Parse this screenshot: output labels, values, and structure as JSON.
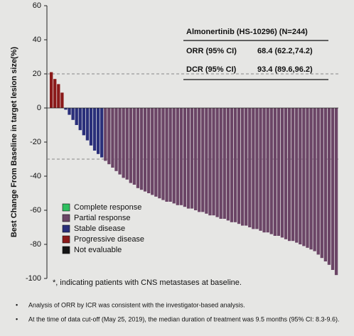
{
  "chart_data": {
    "type": "waterfall",
    "y_label": "Best Change From Baseline in target lesion size(%)",
    "ylim": [
      -100,
      60
    ],
    "yticks": [
      -100,
      -80,
      -60,
      -40,
      -20,
      0,
      20,
      40,
      60
    ],
    "reference_lines": [
      20,
      -30
    ],
    "legend": [
      {
        "name": "Complete response",
        "color": "#2fbf5f"
      },
      {
        "name": "Partial response",
        "color": "#6b4566"
      },
      {
        "name": "Stable disease",
        "color": "#2a2f7a"
      },
      {
        "name": "Progressive disease",
        "color": "#8b1a1a"
      },
      {
        "name": "Not evaluable",
        "color": "#151515"
      }
    ],
    "values": [
      21,
      17,
      14,
      9,
      -1,
      -4,
      -7,
      -10,
      -13,
      -16,
      -19,
      -22,
      -25,
      -27,
      -29,
      -31,
      -33,
      -35,
      -37,
      -39,
      -41,
      -42,
      -44,
      -45,
      -47,
      -48,
      -49,
      -50,
      -51,
      -52,
      -53,
      -54,
      -55,
      -55,
      -56,
      -57,
      -57,
      -58,
      -59,
      -59,
      -60,
      -61,
      -61,
      -62,
      -63,
      -63,
      -64,
      -65,
      -65,
      -66,
      -67,
      -67,
      -68,
      -69,
      -69,
      -70,
      -71,
      -71,
      -72,
      -73,
      -73,
      -74,
      -75,
      -75,
      -76,
      -77,
      -78,
      -78,
      -79,
      -80,
      -81,
      -82,
      -83,
      -84,
      -86,
      -88,
      -90,
      -92,
      -95,
      -98
    ],
    "status": [
      3,
      3,
      3,
      3,
      2,
      2,
      2,
      2,
      2,
      2,
      2,
      2,
      2,
      2,
      2,
      1,
      1,
      1,
      1,
      1,
      1,
      1,
      1,
      1,
      1,
      1,
      1,
      1,
      1,
      1,
      1,
      1,
      1,
      1,
      1,
      1,
      1,
      1,
      1,
      1,
      1,
      1,
      1,
      1,
      1,
      1,
      1,
      1,
      1,
      1,
      1,
      1,
      1,
      1,
      1,
      1,
      1,
      1,
      1,
      1,
      1,
      1,
      1,
      1,
      1,
      1,
      1,
      1,
      1,
      1,
      1,
      1,
      1,
      1,
      1,
      1,
      1,
      1,
      1,
      1
    ],
    "table": {
      "title": "Almonertinib (HS-10296) (N=244)",
      "rows": [
        [
          "ORR (95% CI)",
          "68.4 (62.2,74.2)"
        ],
        [
          "DCR (95% CI)",
          "93.4 (89.6,96.2)"
        ]
      ]
    },
    "footnote": "*, indicating patients with CNS metastases at baseline.",
    "bullets": [
      "Analysis of ORR by ICR was consistent with the investigator-based analysis.",
      "At the time of data cut-off (May 25, 2019), the median duration of treatment was 9.5 months (95% CI: 8.3-9.6)."
    ]
  }
}
